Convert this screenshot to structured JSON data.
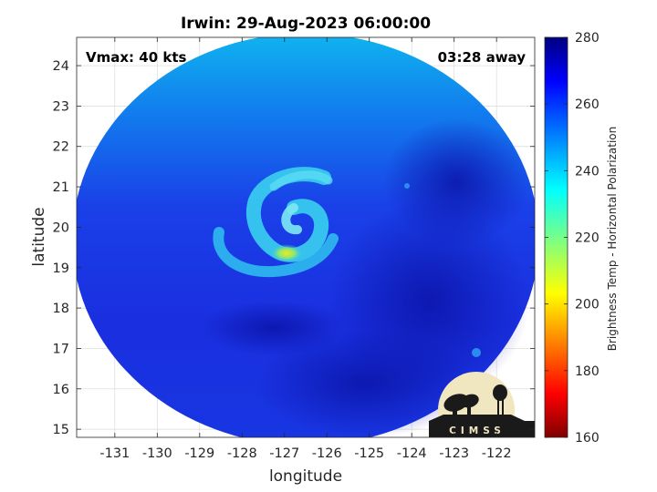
{
  "chart_data": {
    "type": "heatmap",
    "title": "Irwin: 29-Aug-2023 06:00:00",
    "xlabel": "longitude",
    "ylabel": "latitude",
    "xlim": [
      -131.9,
      -121.1
    ],
    "ylim": [
      14.8,
      24.7
    ],
    "xticks": [
      -131,
      -130,
      -129,
      -128,
      -127,
      -126,
      -125,
      -124,
      -123,
      -122
    ],
    "yticks": [
      15,
      16,
      17,
      18,
      19,
      20,
      21,
      22,
      23,
      24
    ],
    "grid": true,
    "annotations": {
      "vmax": "Vmax: 40 kts",
      "time_away": "03:28 away"
    },
    "colorbar": {
      "label": "Brightness Temp - Horizontal Polarization",
      "range": [
        160,
        280
      ],
      "ticks": [
        160,
        180,
        200,
        220,
        240,
        260,
        280
      ],
      "colormap": "jet"
    },
    "storm_center": {
      "lon": -126.8,
      "lat": 19.6
    },
    "coldest_spot": {
      "lon": -126.9,
      "lat": 19.35,
      "tb": 205
    },
    "swath": {
      "center_lon": -126.5,
      "center_lat": 19.7,
      "lon_radius": 5.5,
      "lat_radius": 5.1
    }
  },
  "logo": {
    "text": "CIMSS"
  },
  "colors": {
    "background_tb_blue": "#1a2fe6",
    "dark_blue": "#0d1ab8",
    "light_blue": "#14a8ec",
    "warm_core": "#e8ea28"
  }
}
